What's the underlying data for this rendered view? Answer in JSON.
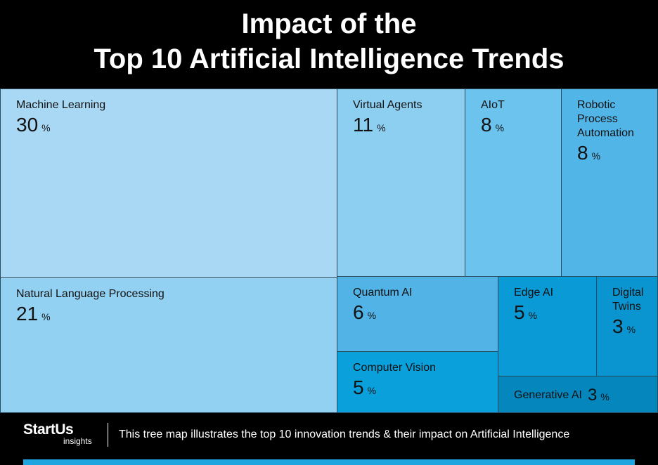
{
  "chart_data": {
    "type": "treemap",
    "title": [
      "Impact of the",
      "Top 10 Artificial Intelligence Trends"
    ],
    "categories": [
      "Machine Learning",
      "Natural Language Processing",
      "Virtual Agents",
      "AIoT",
      "Robotic Process Automation",
      "Quantum AI",
      "Computer Vision",
      "Edge AI",
      "Digital Twins",
      "Generative AI"
    ],
    "values": [
      30,
      21,
      11,
      8,
      8,
      6,
      5,
      5,
      3,
      3
    ],
    "unit": "%",
    "colors": [
      "#a9d8f5",
      "#92d1f2",
      "#8ccff1",
      "#6cc3ee",
      "#52b5e8",
      "#52b3e6",
      "#0aa0dc",
      "#0a9ad6",
      "#0a95d0",
      "#0586bc"
    ]
  },
  "footer": {
    "logo": "StartUs",
    "logo_sub": "insights",
    "caption": "This tree map illustrates the top 10 innovation trends & their impact on Artificial Intelligence"
  }
}
